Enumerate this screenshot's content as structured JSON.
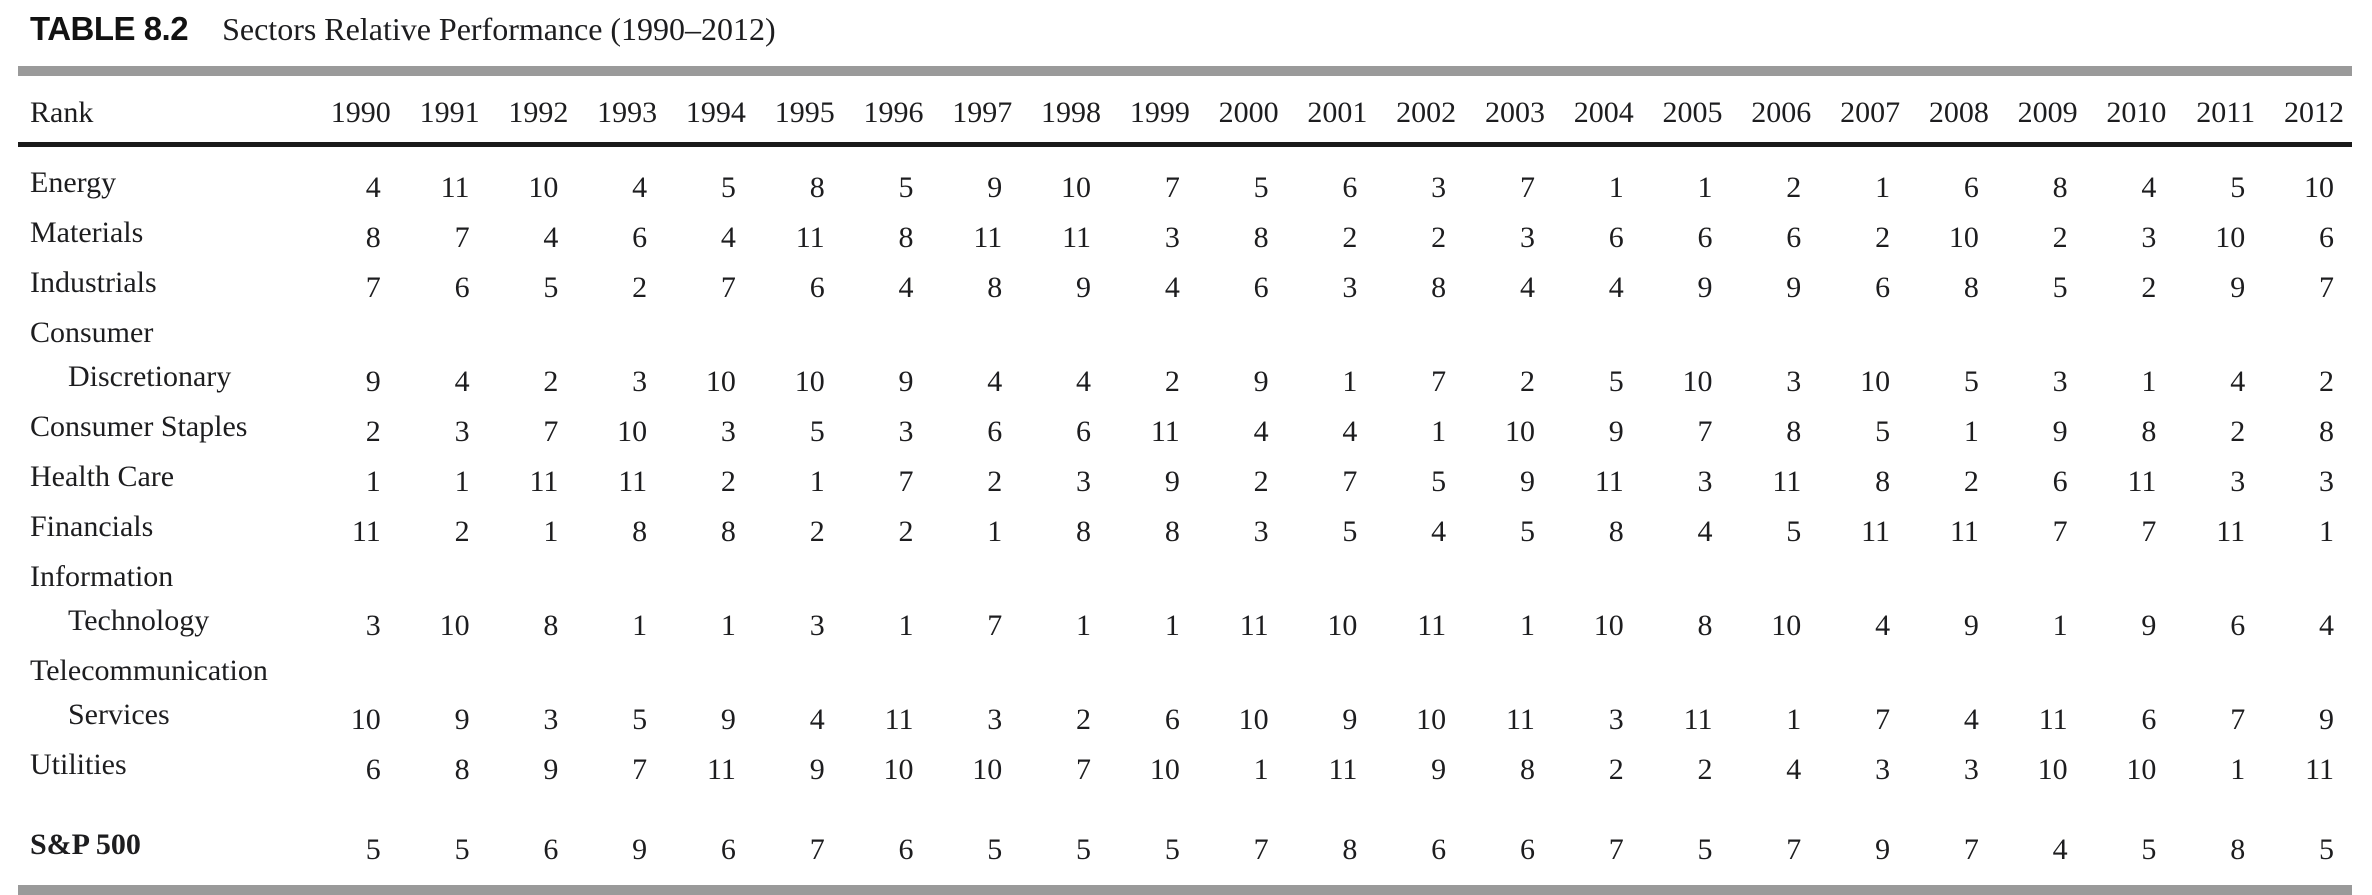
{
  "title": {
    "label": "TABLE 8.2",
    "caption": "Sectors Relative Performance (1990–2012)"
  },
  "colors": {
    "rule_gray": "#9a9a9a",
    "rule_black": "#1a1a1a",
    "text": "#1d1d1f"
  },
  "table": {
    "rank_header": "Rank",
    "years": [
      "1990",
      "1991",
      "1992",
      "1993",
      "1994",
      "1995",
      "1996",
      "1997",
      "1998",
      "1999",
      "2000",
      "2001",
      "2002",
      "2003",
      "2004",
      "2005",
      "2006",
      "2007",
      "2008",
      "2009",
      "2010",
      "2011",
      "2012"
    ],
    "rows": [
      {
        "name": "energy",
        "label_lines": [
          "Energy"
        ],
        "bold": false,
        "spacer_before": false,
        "values": [
          4,
          11,
          10,
          4,
          5,
          8,
          5,
          9,
          10,
          7,
          5,
          6,
          3,
          7,
          1,
          1,
          2,
          1,
          6,
          8,
          4,
          5,
          10
        ]
      },
      {
        "name": "materials",
        "label_lines": [
          "Materials"
        ],
        "bold": false,
        "spacer_before": false,
        "values": [
          8,
          7,
          4,
          6,
          4,
          11,
          8,
          11,
          11,
          3,
          8,
          2,
          2,
          3,
          6,
          6,
          6,
          2,
          10,
          2,
          3,
          10,
          6
        ]
      },
      {
        "name": "industrials",
        "label_lines": [
          "Industrials"
        ],
        "bold": false,
        "spacer_before": false,
        "values": [
          7,
          6,
          5,
          2,
          7,
          6,
          4,
          8,
          9,
          4,
          6,
          3,
          8,
          4,
          4,
          9,
          9,
          6,
          8,
          5,
          2,
          9,
          7
        ]
      },
      {
        "name": "consumer-discretionary",
        "label_lines": [
          "Consumer",
          "Discretionary"
        ],
        "bold": false,
        "spacer_before": false,
        "values": [
          9,
          4,
          2,
          3,
          10,
          10,
          9,
          4,
          4,
          2,
          9,
          1,
          7,
          2,
          5,
          10,
          3,
          10,
          5,
          3,
          1,
          4,
          2
        ]
      },
      {
        "name": "consumer-staples",
        "label_lines": [
          "Consumer Staples"
        ],
        "bold": false,
        "spacer_before": false,
        "values": [
          2,
          3,
          7,
          10,
          3,
          5,
          3,
          6,
          6,
          11,
          4,
          4,
          1,
          10,
          9,
          7,
          8,
          5,
          1,
          9,
          8,
          2,
          8
        ]
      },
      {
        "name": "health-care",
        "label_lines": [
          "Health Care"
        ],
        "bold": false,
        "spacer_before": false,
        "values": [
          1,
          1,
          11,
          11,
          2,
          1,
          7,
          2,
          3,
          9,
          2,
          7,
          5,
          9,
          11,
          3,
          11,
          8,
          2,
          6,
          11,
          3,
          3
        ]
      },
      {
        "name": "financials",
        "label_lines": [
          "Financials"
        ],
        "bold": false,
        "spacer_before": false,
        "values": [
          11,
          2,
          1,
          8,
          8,
          2,
          2,
          1,
          8,
          8,
          3,
          5,
          4,
          5,
          8,
          4,
          5,
          11,
          11,
          7,
          7,
          11,
          1
        ]
      },
      {
        "name": "information-technology",
        "label_lines": [
          "Information",
          "Technology"
        ],
        "bold": false,
        "spacer_before": false,
        "values": [
          3,
          10,
          8,
          1,
          1,
          3,
          1,
          7,
          1,
          1,
          11,
          10,
          11,
          1,
          10,
          8,
          10,
          4,
          9,
          1,
          9,
          6,
          4
        ]
      },
      {
        "name": "telecommunication-services",
        "label_lines": [
          "Telecommunication",
          "Services"
        ],
        "bold": false,
        "spacer_before": false,
        "values": [
          10,
          9,
          3,
          5,
          9,
          4,
          11,
          3,
          2,
          6,
          10,
          9,
          10,
          11,
          3,
          11,
          1,
          7,
          4,
          11,
          6,
          7,
          9
        ]
      },
      {
        "name": "utilities",
        "label_lines": [
          "Utilities"
        ],
        "bold": false,
        "spacer_before": false,
        "values": [
          6,
          8,
          9,
          7,
          11,
          9,
          10,
          10,
          7,
          10,
          1,
          11,
          9,
          8,
          2,
          2,
          4,
          3,
          3,
          10,
          10,
          1,
          11
        ]
      },
      {
        "name": "sp-500",
        "label_lines": [
          "S&P 500"
        ],
        "bold": true,
        "spacer_before": true,
        "values": [
          5,
          5,
          6,
          9,
          6,
          7,
          6,
          5,
          5,
          5,
          7,
          8,
          6,
          6,
          7,
          5,
          7,
          9,
          7,
          4,
          5,
          8,
          5
        ]
      }
    ]
  }
}
